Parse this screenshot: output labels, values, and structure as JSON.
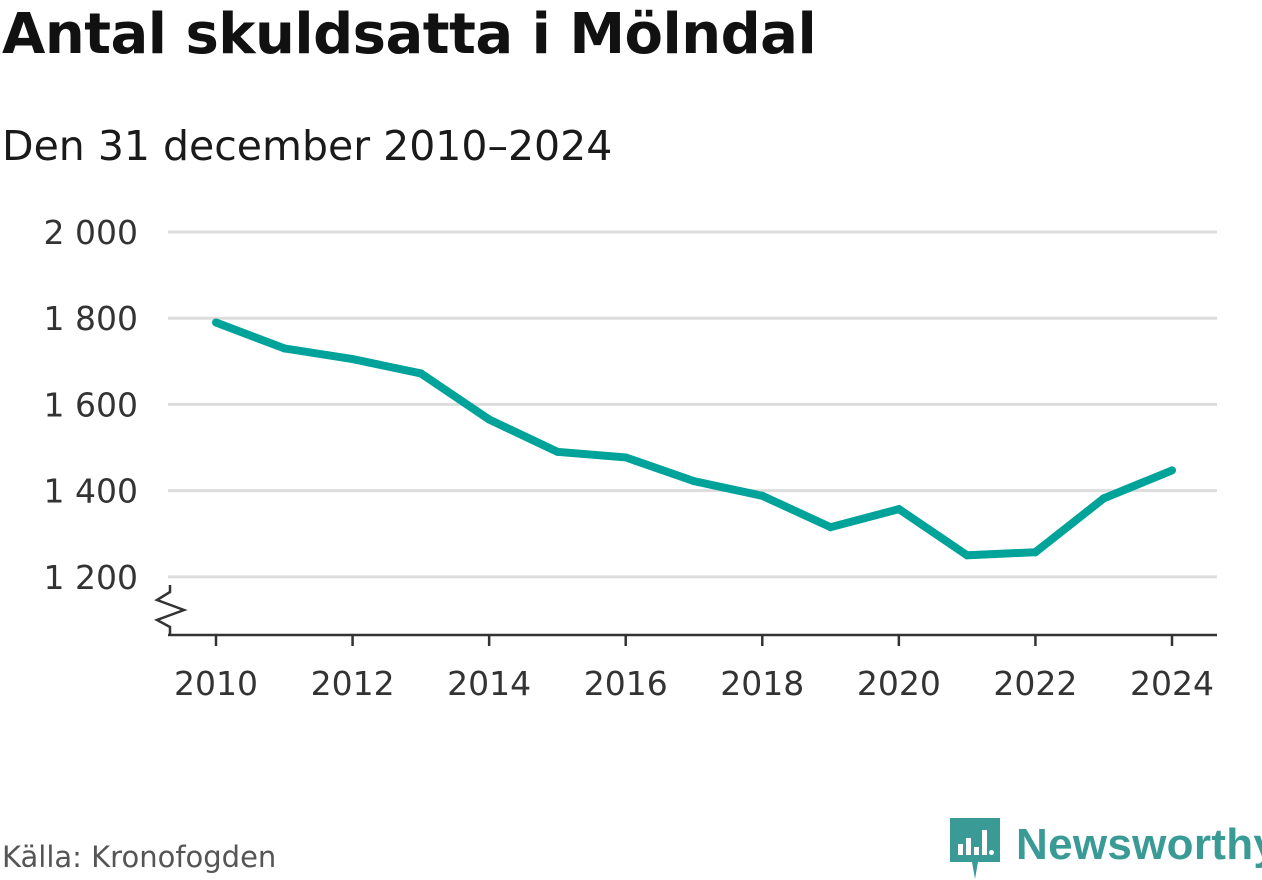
{
  "title": "Antal skuldsatta i Mölndal",
  "subtitle": "Den 31 december 2010–2024",
  "source": "Källa: Kronofogden",
  "brand": {
    "name": "Newsworthy",
    "color": "#3a9b96",
    "icon": "newsworthy-logo-icon"
  },
  "colors": {
    "line": "#00a39a",
    "grid": "#dddddd",
    "axis": "#333333",
    "text": "#1a1a1a"
  },
  "chart_data": {
    "type": "line",
    "title": "Antal skuldsatta i Mölndal",
    "subtitle": "Den 31 december 2010–2024",
    "xlabel": "",
    "ylabel": "",
    "x": [
      2010,
      2011,
      2012,
      2013,
      2014,
      2015,
      2016,
      2017,
      2018,
      2019,
      2020,
      2021,
      2022,
      2023,
      2024
    ],
    "series": [
      {
        "name": "Antal skuldsatta",
        "values": [
          1790,
          1730,
          1705,
          1672,
          1565,
          1490,
          1477,
          1422,
          1388,
          1315,
          1357,
          1250,
          1257,
          1382,
          1447
        ]
      }
    ],
    "ylim": [
      1065,
      2000
    ],
    "xlim": [
      2010,
      2024
    ],
    "yticks": [
      1200,
      1400,
      1600,
      1800,
      2000
    ],
    "ytick_labels": [
      "1 200",
      "1 400",
      "1 600",
      "1 800",
      "2 000"
    ],
    "xticks": [
      2010,
      2012,
      2014,
      2016,
      2018,
      2020,
      2022,
      2024
    ],
    "xtick_labels": [
      "2010",
      "2012",
      "2014",
      "2016",
      "2018",
      "2020",
      "2022",
      "2024"
    ],
    "axis_break": true,
    "grid": true,
    "legend": "none"
  }
}
